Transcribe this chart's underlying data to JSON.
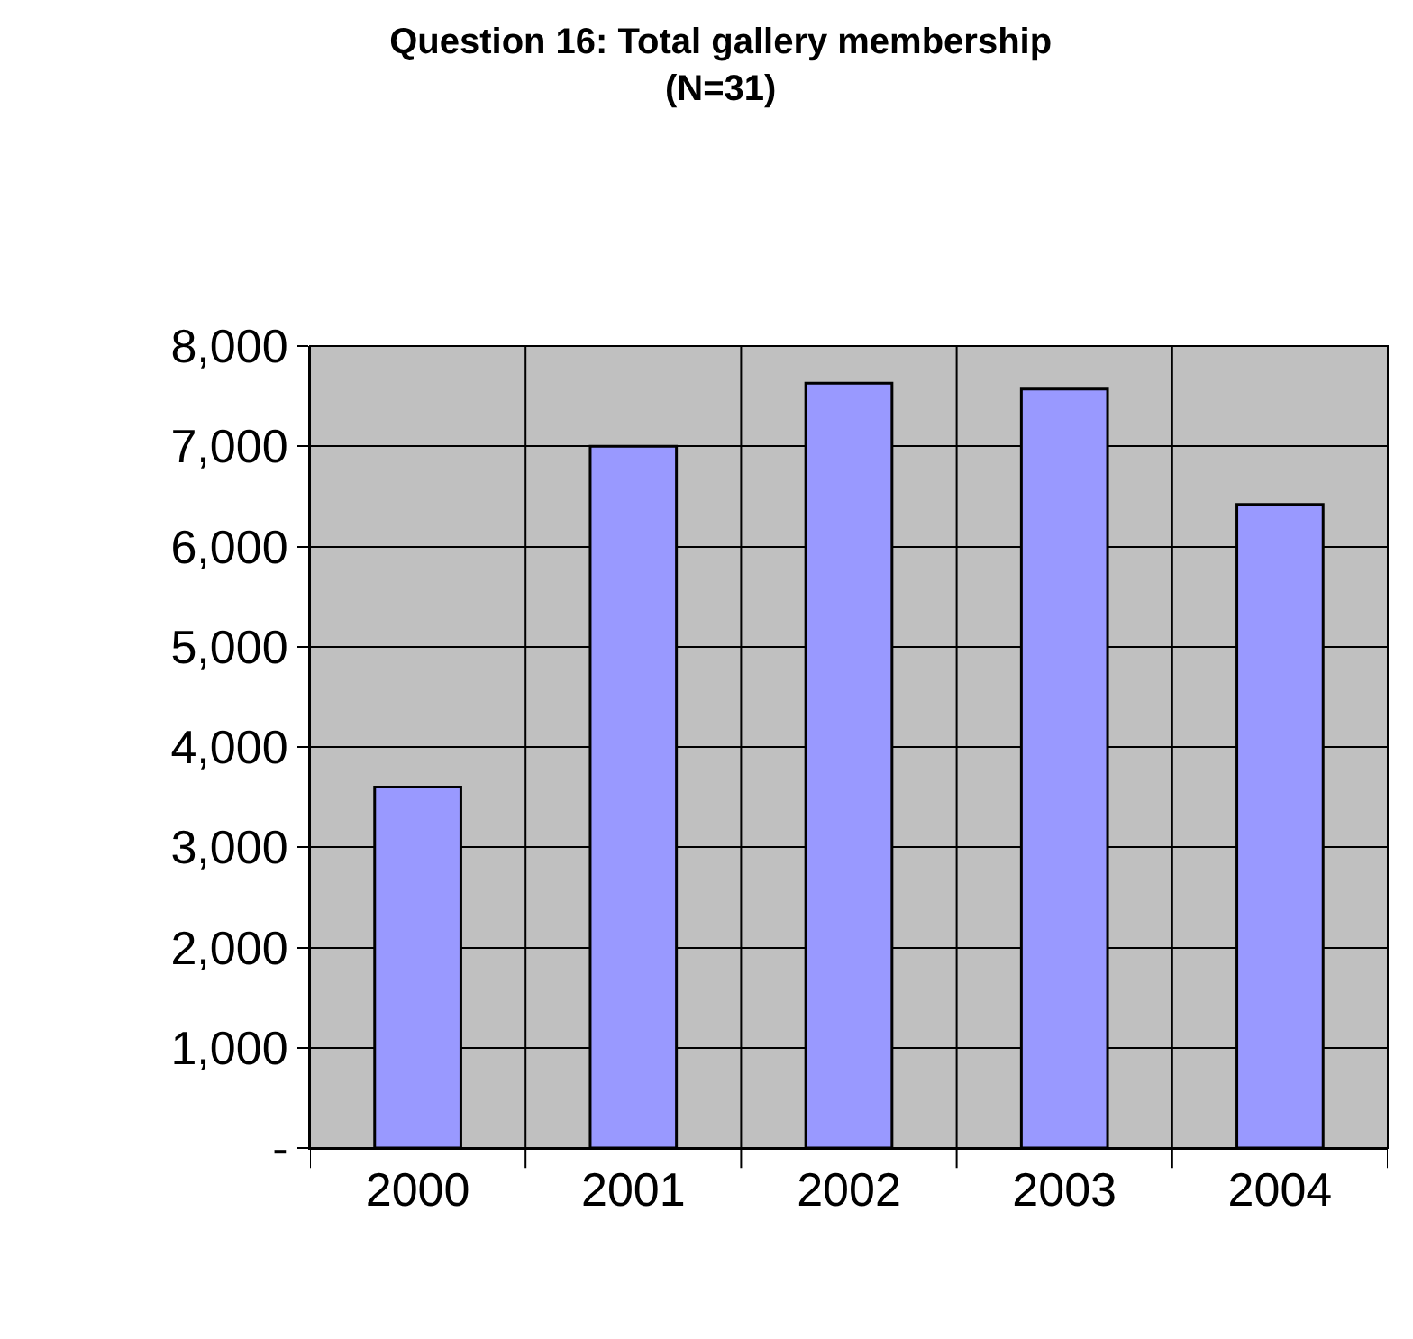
{
  "chart_data": {
    "type": "bar",
    "title": "Question 16: Total gallery membership",
    "subtitle": "(N=31)",
    "categories": [
      "2000",
      "2001",
      "2002",
      "2003",
      "2004"
    ],
    "values": [
      3600,
      7000,
      7630,
      7570,
      6420
    ],
    "color": "#9999ff",
    "ylim": [
      0,
      8000
    ],
    "yticks": [
      {
        "value": 0,
        "label": "-"
      },
      {
        "value": 1000,
        "label": "1,000"
      },
      {
        "value": 2000,
        "label": "2,000"
      },
      {
        "value": 3000,
        "label": "3,000"
      },
      {
        "value": 4000,
        "label": "4,000"
      },
      {
        "value": 5000,
        "label": "5,000"
      },
      {
        "value": 6000,
        "label": "6,000"
      },
      {
        "value": 7000,
        "label": "7,000"
      },
      {
        "value": 8000,
        "label": "8,000"
      }
    ],
    "grid": true
  }
}
